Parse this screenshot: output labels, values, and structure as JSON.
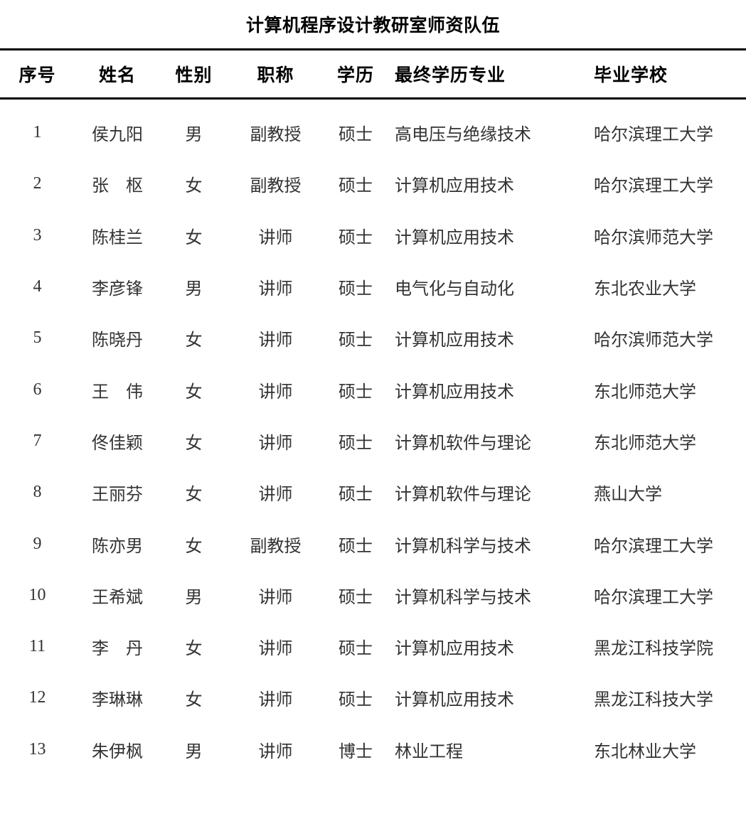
{
  "title": "计算机程序设计教研室师资队伍",
  "colors": {
    "heading_text": "#000000",
    "body_text": "#333333",
    "rule": "#000000",
    "background": "#ffffff"
  },
  "table": {
    "columns": [
      "序号",
      "姓名",
      "性别",
      "职称",
      "学历",
      "最终学历专业",
      "毕业学校"
    ],
    "rows": [
      {
        "no": "1",
        "name": "侯九阳",
        "gender": "男",
        "job_title": "副教授",
        "degree": "硕士",
        "major": "高电压与绝缘技术",
        "school": "哈尔滨理工大学"
      },
      {
        "no": "2",
        "name": "张　枢",
        "gender": "女",
        "job_title": "副教授",
        "degree": "硕士",
        "major": "计算机应用技术",
        "school": "哈尔滨理工大学"
      },
      {
        "no": "3",
        "name": "陈桂兰",
        "gender": "女",
        "job_title": "讲师",
        "degree": "硕士",
        "major": "计算机应用技术",
        "school": "哈尔滨师范大学"
      },
      {
        "no": "4",
        "name": "李彦锋",
        "gender": "男",
        "job_title": "讲师",
        "degree": "硕士",
        "major": "电气化与自动化",
        "school": "东北农业大学"
      },
      {
        "no": "5",
        "name": "陈晓丹",
        "gender": "女",
        "job_title": "讲师",
        "degree": "硕士",
        "major": "计算机应用技术",
        "school": "哈尔滨师范大学"
      },
      {
        "no": "6",
        "name": "王　伟",
        "gender": "女",
        "job_title": "讲师",
        "degree": "硕士",
        "major": "计算机应用技术",
        "school": "东北师范大学"
      },
      {
        "no": "7",
        "name": "佟佳颖",
        "gender": "女",
        "job_title": "讲师",
        "degree": "硕士",
        "major": "计算机软件与理论",
        "school": "东北师范大学"
      },
      {
        "no": "8",
        "name": "王丽芬",
        "gender": "女",
        "job_title": "讲师",
        "degree": "硕士",
        "major": "计算机软件与理论",
        "school": "燕山大学"
      },
      {
        "no": "9",
        "name": "陈亦男",
        "gender": "女",
        "job_title": "副教授",
        "degree": "硕士",
        "major": "计算机科学与技术",
        "school": "哈尔滨理工大学"
      },
      {
        "no": "10",
        "name": "王希斌",
        "gender": "男",
        "job_title": "讲师",
        "degree": "硕士",
        "major": "计算机科学与技术",
        "school": "哈尔滨理工大学"
      },
      {
        "no": "11",
        "name": "李　丹",
        "gender": "女",
        "job_title": "讲师",
        "degree": "硕士",
        "major": "计算机应用技术",
        "school": "黑龙江科技学院"
      },
      {
        "no": "12",
        "name": "李琳琳",
        "gender": "女",
        "job_title": "讲师",
        "degree": "硕士",
        "major": "计算机应用技术",
        "school": "黑龙江科技大学"
      },
      {
        "no": "13",
        "name": "朱伊枫",
        "gender": "男",
        "job_title": "讲师",
        "degree": "博士",
        "major": "林业工程",
        "school": "东北林业大学"
      }
    ]
  }
}
